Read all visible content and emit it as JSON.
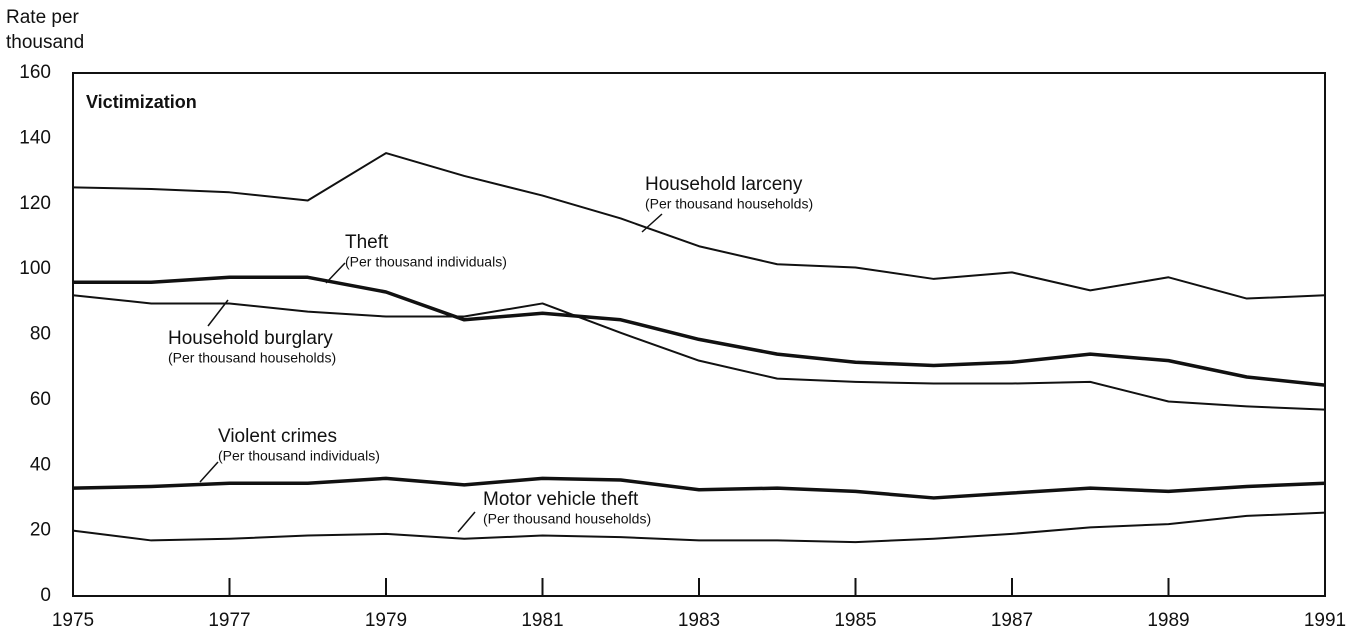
{
  "chart_data": {
    "type": "line",
    "title": "Victimization",
    "y_label": [
      "Rate per",
      "thousand"
    ],
    "x": [
      1975,
      1976,
      1977,
      1978,
      1979,
      1980,
      1981,
      1982,
      1983,
      1984,
      1985,
      1986,
      1987,
      1988,
      1989,
      1990,
      1991
    ],
    "xlim": [
      1975,
      1991
    ],
    "xticks": [
      1975,
      1977,
      1979,
      1981,
      1983,
      1985,
      1987,
      1989,
      1991
    ],
    "ylim": [
      0,
      160
    ],
    "yticks": [
      0,
      20,
      40,
      60,
      80,
      100,
      120,
      140,
      160
    ],
    "grid": false,
    "series": [
      {
        "name": "Household larceny",
        "note": "(Per thousand households)",
        "color": "#111111",
        "width": 2,
        "values": [
          125,
          124.5,
          123.5,
          121,
          135.5,
          128.5,
          122.5,
          115.5,
          107,
          101.5,
          100.5,
          97,
          99,
          93.5,
          97.5,
          91,
          92
        ]
      },
      {
        "name": "Theft",
        "note": "(Per thousand individuals)",
        "color": "#111111",
        "width": 3.5,
        "values": [
          96,
          96,
          97.5,
          97.5,
          93,
          84.5,
          86.5,
          84.5,
          78.5,
          74,
          71.5,
          70.5,
          71.5,
          74,
          72,
          67,
          64.5
        ]
      },
      {
        "name": "Household burglary",
        "note": "(Per thousand households)",
        "color": "#111111",
        "width": 2,
        "values": [
          92,
          89.5,
          89.5,
          87,
          85.5,
          85.5,
          89.5,
          80.5,
          72,
          66.5,
          65.5,
          65,
          65,
          65.5,
          59.5,
          58,
          57
        ]
      },
      {
        "name": "Violent crimes",
        "note": "(Per thousand individuals)",
        "color": "#111111",
        "width": 3.5,
        "values": [
          33,
          33.5,
          34.5,
          34.5,
          36,
          34,
          36,
          35.5,
          32.5,
          33,
          32,
          30,
          31.5,
          33,
          32,
          33.5,
          34.5
        ]
      },
      {
        "name": "Motor vehicle theft",
        "note": "(Per thousand households)",
        "color": "#111111",
        "width": 2,
        "values": [
          20,
          17,
          17.5,
          18.5,
          19,
          17.5,
          18.5,
          18,
          17,
          17,
          16.5,
          17.5,
          19,
          21,
          22,
          24.5,
          25.5
        ]
      }
    ]
  }
}
